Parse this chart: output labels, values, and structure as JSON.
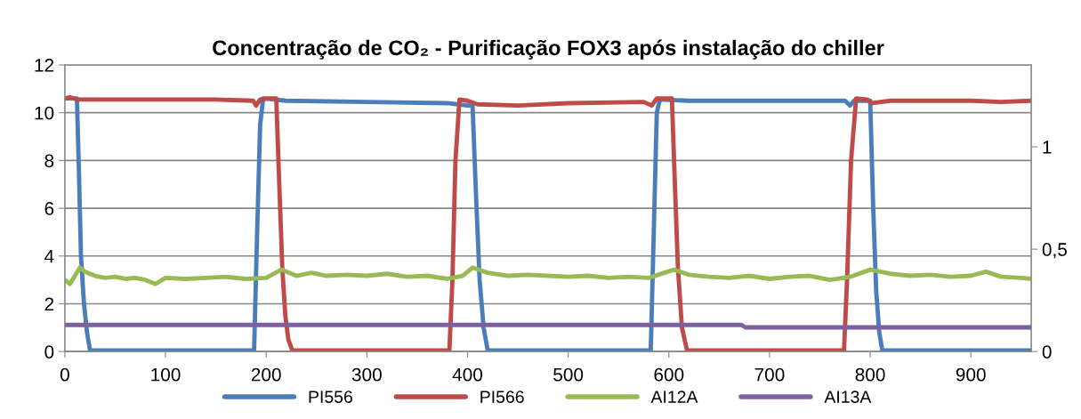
{
  "chart_data": {
    "type": "line",
    "title": "Concentração de CO₂ - Purificação FOX3 após instalação do chiller",
    "xlim": [
      0,
      960
    ],
    "xticks": [
      0,
      100,
      200,
      300,
      400,
      500,
      600,
      700,
      800,
      900
    ],
    "ylim": [
      0,
      12
    ],
    "yticks": [
      0,
      2,
      4,
      6,
      8,
      10,
      12
    ],
    "y2lim": [
      0,
      1.4
    ],
    "y2ticks": [
      0,
      {
        "value": 0.5,
        "label": "0,5"
      },
      1
    ],
    "grid": "y",
    "legend": "bottom",
    "marker": "none",
    "line_style": "solid",
    "series": [
      {
        "name": "PI556",
        "color": "#4a7ebb",
        "x": [
          0,
          12,
          14,
          16,
          19,
          22,
          25,
          100,
          188,
          191,
          194,
          197,
          220,
          300,
          380,
          400,
          405,
          408,
          412,
          416,
          420,
          500,
          582,
          585,
          588,
          591,
          620,
          700,
          775,
          780,
          784,
          800,
          803,
          806,
          809,
          812,
          900,
          960
        ],
        "values": [
          10.6,
          10.6,
          7.5,
          4,
          2,
          0.8,
          0.05,
          0.05,
          0.05,
          5,
          9.5,
          10.6,
          10.5,
          10.45,
          10.4,
          10.3,
          10.3,
          7,
          3,
          1,
          0.05,
          0.05,
          0.05,
          5,
          10,
          10.55,
          10.5,
          10.5,
          10.5,
          10.3,
          10.5,
          10.5,
          6,
          2.5,
          0.8,
          0.05,
          0.05,
          0.05
        ]
      },
      {
        "name": "PI566",
        "color": "#be4b48",
        "x": [
          0,
          5,
          12,
          50,
          100,
          150,
          187,
          190,
          194,
          200,
          210,
          213,
          216,
          219,
          222,
          226,
          300,
          382,
          385,
          388,
          392,
          400,
          410,
          450,
          500,
          575,
          583,
          588,
          603,
          606,
          609,
          613,
          618,
          700,
          774,
          777,
          781,
          786,
          797,
          802,
          820,
          900,
          930,
          960
        ],
        "values": [
          10.6,
          10.65,
          10.55,
          10.55,
          10.55,
          10.55,
          10.5,
          10.3,
          10.55,
          10.6,
          10.6,
          7,
          3.5,
          1.5,
          0.5,
          0.05,
          0.05,
          0.05,
          3,
          8,
          10.55,
          10.5,
          10.35,
          10.3,
          10.4,
          10.45,
          10.3,
          10.6,
          10.6,
          7,
          3.5,
          1,
          0.05,
          0.05,
          0.05,
          3,
          8,
          10.6,
          10.55,
          10.4,
          10.5,
          10.5,
          10.45,
          10.5
        ]
      },
      {
        "name": "AI12A",
        "color": "#98b954",
        "axis": "y2",
        "x": [
          0,
          5,
          10,
          15,
          20,
          30,
          40,
          50,
          60,
          70,
          80,
          90,
          100,
          120,
          140,
          160,
          180,
          200,
          215,
          230,
          245,
          260,
          280,
          300,
          320,
          340,
          360,
          380,
          395,
          405,
          420,
          440,
          460,
          480,
          500,
          520,
          540,
          560,
          580,
          605,
          620,
          640,
          660,
          680,
          700,
          720,
          740,
          760,
          780,
          800,
          820,
          840,
          860,
          880,
          900,
          915,
          930,
          950,
          960
        ],
        "values": [
          0.35,
          0.33,
          0.37,
          0.41,
          0.39,
          0.37,
          0.36,
          0.365,
          0.355,
          0.36,
          0.35,
          0.33,
          0.36,
          0.355,
          0.36,
          0.365,
          0.355,
          0.36,
          0.4,
          0.37,
          0.385,
          0.37,
          0.375,
          0.37,
          0.38,
          0.365,
          0.37,
          0.355,
          0.37,
          0.41,
          0.385,
          0.37,
          0.375,
          0.37,
          0.365,
          0.37,
          0.36,
          0.365,
          0.36,
          0.4,
          0.375,
          0.365,
          0.36,
          0.37,
          0.355,
          0.365,
          0.37,
          0.35,
          0.365,
          0.4,
          0.38,
          0.37,
          0.375,
          0.365,
          0.37,
          0.39,
          0.365,
          0.36,
          0.355
        ]
      },
      {
        "name": "AI13A",
        "color": "#7d60a0",
        "axis": "y2",
        "x": [
          0,
          672,
          676,
          960
        ],
        "values": [
          0.13,
          0.13,
          0.118,
          0.118
        ]
      }
    ]
  }
}
